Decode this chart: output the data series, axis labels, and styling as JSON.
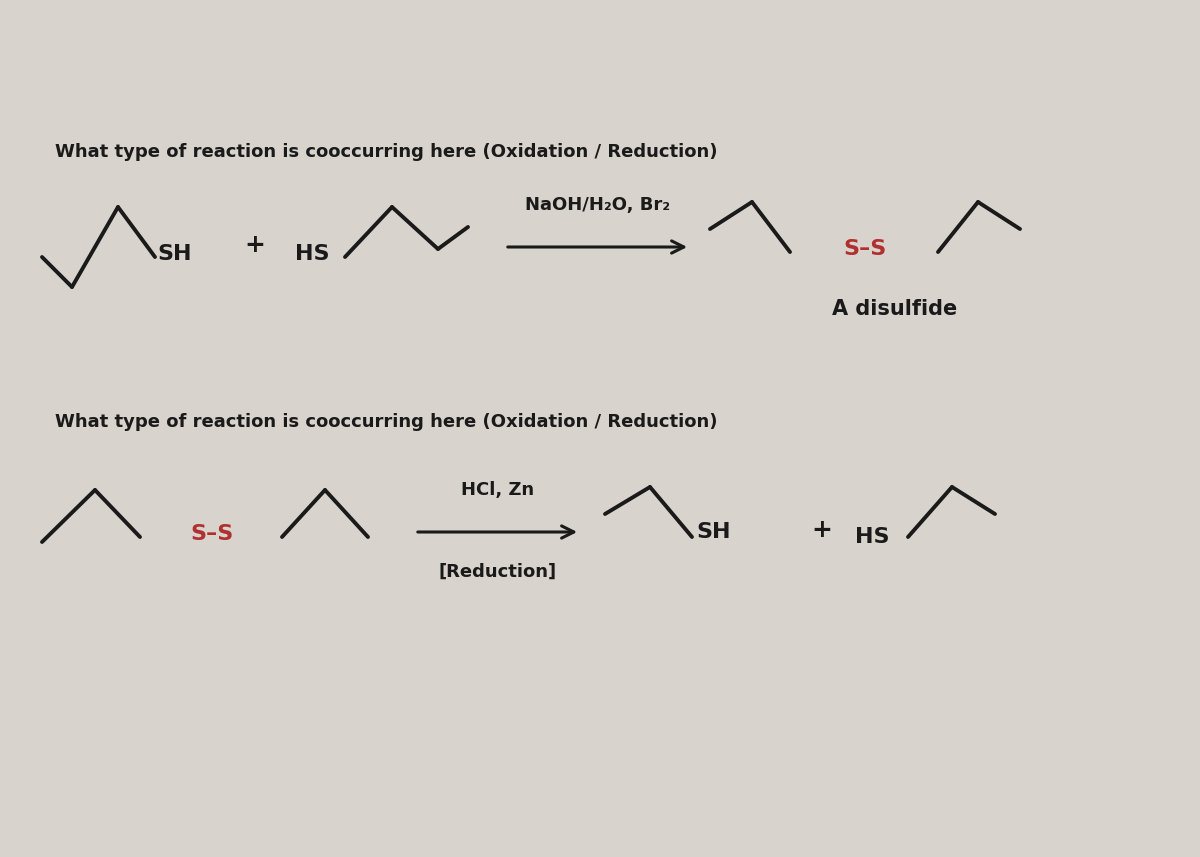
{
  "bg_color": "#d8d4cd",
  "text_color": "#1a1a1a",
  "red_color": "#b03030",
  "figsize": [
    12.0,
    8.57
  ],
  "dpi": 100,
  "question1": "What type of reaction is cooccurring here (Oxidation / Reduction)",
  "question2": "What type of reaction is cooccurring here (Oxidation / Reduction)",
  "reagent1": "NaOH/H₂O, Br₂",
  "reagent2": "HCl, Zn",
  "reagent2b": "[Reduction]",
  "label_SH1": "SH",
  "label_plus1": "+",
  "label_HS1": "HS",
  "label_SS1": "S–S",
  "label_disulfide": "A disulfide",
  "label_SS2": "S–S",
  "label_SH2": "SH",
  "label_plus2": "+",
  "label_HS2": "HS"
}
